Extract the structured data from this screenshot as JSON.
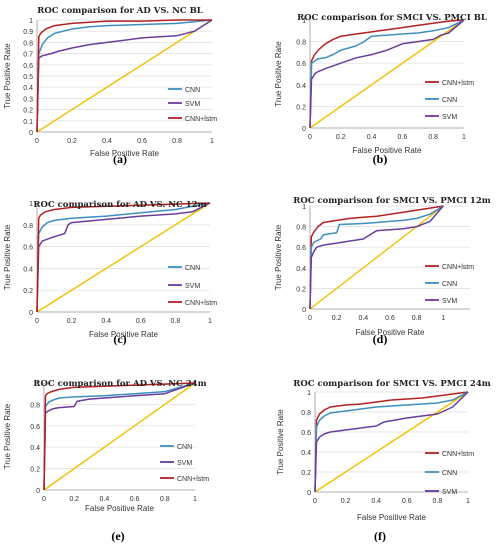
{
  "colors": {
    "CNN": "#3d8fbf",
    "SVM": "#6a3d9a",
    "CNN+lstm": "#b22222",
    "diagonal": "#f0c000"
  },
  "chart_data": [
    {
      "type": "line",
      "title": "ROC comparison for AD VS. NC BL",
      "caption": "(a)",
      "xlabel": "False Positive Rate",
      "ylabel": "True Positive Rate",
      "xlim": [
        0,
        1
      ],
      "ylim": [
        0,
        1
      ],
      "xticks": [
        "0",
        "0.2",
        "0.4",
        "0.6",
        "0.8",
        "1"
      ],
      "yticks": [
        "0",
        "0.1",
        "0.2",
        "0.3",
        "0.4",
        "0.5",
        "0.6",
        "0.7",
        "0.8",
        "0.9",
        "1"
      ],
      "legend_position": "bottom-right",
      "legend": [
        "CNN",
        "SVM",
        "CNN+lstm"
      ],
      "series": [
        {
          "name": "CNN",
          "x": [
            0,
            0.01,
            0.03,
            0.06,
            0.1,
            0.15,
            0.2,
            0.3,
            0.4,
            0.6,
            0.8,
            1
          ],
          "y": [
            0,
            0.7,
            0.78,
            0.84,
            0.88,
            0.9,
            0.92,
            0.94,
            0.95,
            0.96,
            0.97,
            1
          ]
        },
        {
          "name": "SVM",
          "x": [
            0,
            0.01,
            0.03,
            0.08,
            0.12,
            0.2,
            0.3,
            0.4,
            0.5,
            0.6,
            0.7,
            0.8,
            0.9,
            1
          ],
          "y": [
            0,
            0.66,
            0.68,
            0.7,
            0.72,
            0.75,
            0.78,
            0.8,
            0.82,
            0.84,
            0.85,
            0.86,
            0.9,
            1
          ]
        },
        {
          "name": "CNN+lstm",
          "x": [
            0,
            0.01,
            0.02,
            0.05,
            0.1,
            0.2,
            0.3,
            0.4,
            0.6,
            0.8,
            1
          ],
          "y": [
            0,
            0.85,
            0.88,
            0.92,
            0.95,
            0.97,
            0.98,
            0.99,
            0.99,
            1,
            1
          ]
        }
      ]
    },
    {
      "type": "line",
      "title": "ROC comparison for SMCI VS. PMCI BL",
      "caption": "(b)",
      "xlabel": "False Positive Rate",
      "ylabel": "True Positive Rate",
      "xlim": [
        0,
        1
      ],
      "ylim": [
        0,
        1
      ],
      "xticks": [
        "0",
        "0.2",
        "0.4",
        "0.6",
        "0.8",
        "1"
      ],
      "yticks": [
        "0",
        "0.2",
        "0.4",
        "0.6",
        "0.8",
        "1"
      ],
      "legend_position": "right",
      "legend": [
        "CNN+lstm",
        "CNN",
        "SVM"
      ],
      "series": [
        {
          "name": "CNN+lstm",
          "x": [
            0,
            0.01,
            0.03,
            0.06,
            0.1,
            0.15,
            0.2,
            0.3,
            0.4,
            0.5,
            0.6,
            0.7,
            0.8,
            0.9,
            1
          ],
          "y": [
            0,
            0.62,
            0.68,
            0.73,
            0.78,
            0.82,
            0.85,
            0.87,
            0.89,
            0.91,
            0.93,
            0.95,
            0.97,
            0.99,
            1
          ]
        },
        {
          "name": "CNN",
          "x": [
            0,
            0.01,
            0.05,
            0.1,
            0.15,
            0.2,
            0.3,
            0.35,
            0.4,
            0.5,
            0.6,
            0.7,
            0.8,
            0.9,
            1
          ],
          "y": [
            0,
            0.6,
            0.64,
            0.65,
            0.68,
            0.72,
            0.76,
            0.8,
            0.85,
            0.86,
            0.87,
            0.88,
            0.9,
            0.93,
            1
          ]
        },
        {
          "name": "SVM",
          "x": [
            0,
            0.01,
            0.03,
            0.05,
            0.1,
            0.2,
            0.3,
            0.4,
            0.5,
            0.6,
            0.7,
            0.8,
            0.85,
            0.9,
            1
          ],
          "y": [
            0,
            0.45,
            0.5,
            0.52,
            0.55,
            0.6,
            0.65,
            0.68,
            0.72,
            0.78,
            0.8,
            0.82,
            0.86,
            0.88,
            1
          ]
        }
      ]
    },
    {
      "type": "line",
      "title": "ROC comparison for AD VS. NC 12m",
      "caption": "(c)",
      "xlabel": "False Positive Rate",
      "ylabel": "True Positive Rate",
      "xlim": [
        0,
        1
      ],
      "ylim": [
        0,
        1
      ],
      "xticks": [
        "0",
        "0.2",
        "0.4",
        "0.6",
        "0.8",
        "1"
      ],
      "yticks": [
        "0",
        "0.2",
        "0.4",
        "0.6",
        "0.8",
        "1"
      ],
      "legend_position": "bottom-right",
      "legend": [
        "CNN",
        "SVM",
        "CNN+lstm"
      ],
      "series": [
        {
          "name": "CNN",
          "x": [
            0,
            0.01,
            0.03,
            0.06,
            0.1,
            0.2,
            0.4,
            0.6,
            0.8,
            1
          ],
          "y": [
            0,
            0.72,
            0.78,
            0.82,
            0.84,
            0.86,
            0.88,
            0.91,
            0.94,
            1
          ]
        },
        {
          "name": "SVM",
          "x": [
            0,
            0.01,
            0.03,
            0.08,
            0.12,
            0.16,
            0.18,
            0.2,
            0.4,
            0.6,
            0.8,
            0.9,
            1
          ],
          "y": [
            0,
            0.6,
            0.65,
            0.68,
            0.7,
            0.72,
            0.8,
            0.82,
            0.85,
            0.88,
            0.9,
            0.92,
            1
          ]
        },
        {
          "name": "CNN+lstm",
          "x": [
            0,
            0.01,
            0.02,
            0.05,
            0.1,
            0.2,
            0.4,
            0.6,
            0.8,
            1
          ],
          "y": [
            0,
            0.86,
            0.89,
            0.92,
            0.94,
            0.96,
            0.97,
            0.98,
            0.99,
            1
          ]
        }
      ]
    },
    {
      "type": "line",
      "title": "ROC comparison for SMCI VS. PMCI 12m",
      "caption": "(d)",
      "xlabel": "False Positive Rate",
      "ylabel": "True Positive Rate",
      "xlim": [
        0,
        1.2
      ],
      "ylim": [
        0,
        1
      ],
      "xticks": [
        "0",
        "0.2",
        "0.4",
        "0.6",
        "0.8",
        "1"
      ],
      "yticks": [
        "0",
        "0.2",
        "0.4",
        "0.6",
        "0.8",
        "1"
      ],
      "legend_position": "right",
      "legend": [
        "CNN+lstm",
        "CNN",
        "SVM"
      ],
      "series": [
        {
          "name": "CNN+lstm",
          "x": [
            0,
            0.01,
            0.03,
            0.06,
            0.1,
            0.2,
            0.3,
            0.4,
            0.5,
            0.6,
            0.7,
            0.8,
            0.9,
            1
          ],
          "y": [
            0,
            0.7,
            0.75,
            0.8,
            0.84,
            0.86,
            0.88,
            0.89,
            0.9,
            0.92,
            0.94,
            0.96,
            0.98,
            1
          ]
        },
        {
          "name": "CNN",
          "x": [
            0,
            0.01,
            0.03,
            0.08,
            0.1,
            0.2,
            0.22,
            0.4,
            0.5,
            0.6,
            0.7,
            0.8,
            0.9,
            1
          ],
          "y": [
            0,
            0.6,
            0.65,
            0.68,
            0.72,
            0.74,
            0.82,
            0.83,
            0.84,
            0.85,
            0.86,
            0.88,
            0.92,
            1
          ]
        },
        {
          "name": "SVM",
          "x": [
            0,
            0.01,
            0.03,
            0.05,
            0.1,
            0.2,
            0.3,
            0.4,
            0.45,
            0.5,
            0.6,
            0.7,
            0.8,
            0.9,
            1
          ],
          "y": [
            0,
            0.5,
            0.56,
            0.6,
            0.62,
            0.64,
            0.66,
            0.68,
            0.72,
            0.76,
            0.77,
            0.78,
            0.8,
            0.85,
            1
          ]
        }
      ]
    },
    {
      "type": "line",
      "title": "ROC comparison for AD VS. NC 24m",
      "caption": "(e)",
      "xlabel": "False Positive Rate",
      "ylabel": "True Positive Rate",
      "xlim": [
        0,
        1
      ],
      "ylim": [
        0,
        1
      ],
      "xticks": [
        "0",
        "0.2",
        "0.4",
        "0.6",
        "0.8",
        "1"
      ],
      "yticks": [
        "0",
        "0.2",
        "0.4",
        "0.6",
        "0.8",
        "1"
      ],
      "legend_position": "bottom-right",
      "legend": [
        "CNN",
        "SVM",
        "CNN+lstm"
      ],
      "series": [
        {
          "name": "CNN",
          "x": [
            0,
            0.01,
            0.03,
            0.06,
            0.1,
            0.2,
            0.4,
            0.6,
            0.8,
            1
          ],
          "y": [
            0,
            0.78,
            0.82,
            0.84,
            0.86,
            0.87,
            0.88,
            0.9,
            0.92,
            1
          ]
        },
        {
          "name": "SVM",
          "x": [
            0,
            0.01,
            0.03,
            0.06,
            0.1,
            0.2,
            0.22,
            0.3,
            0.4,
            0.6,
            0.8,
            1
          ],
          "y": [
            0,
            0.72,
            0.74,
            0.76,
            0.77,
            0.78,
            0.83,
            0.85,
            0.86,
            0.88,
            0.9,
            1
          ]
        },
        {
          "name": "CNN+lstm",
          "x": [
            0,
            0.01,
            0.02,
            0.05,
            0.1,
            0.2,
            0.4,
            0.6,
            0.8,
            1
          ],
          "y": [
            0,
            0.88,
            0.9,
            0.92,
            0.94,
            0.96,
            0.97,
            0.98,
            0.99,
            1
          ]
        }
      ]
    },
    {
      "type": "line",
      "title": "ROC comparison for SMCI VS. PMCI 24m",
      "caption": "(f)",
      "xlabel": "False Positive Rate",
      "ylabel": "True Positive Rate",
      "xlim": [
        0,
        1
      ],
      "ylim": [
        0,
        1
      ],
      "xticks": [
        "0",
        "0.2",
        "0.4",
        "0.6",
        "0.8",
        "1"
      ],
      "yticks": [
        "0",
        "0.2",
        "0.4",
        "0.6",
        "0.8",
        "1"
      ],
      "legend_position": "right",
      "legend": [
        "CNN+lstm",
        "CNN",
        "SVM"
      ],
      "series": [
        {
          "name": "CNN+lstm",
          "x": [
            0,
            0.01,
            0.03,
            0.06,
            0.1,
            0.2,
            0.3,
            0.4,
            0.5,
            0.6,
            0.7,
            0.8,
            0.9,
            1
          ],
          "y": [
            0,
            0.72,
            0.78,
            0.82,
            0.85,
            0.87,
            0.88,
            0.9,
            0.92,
            0.93,
            0.94,
            0.96,
            0.98,
            1
          ]
        },
        {
          "name": "CNN",
          "x": [
            0,
            0.01,
            0.03,
            0.06,
            0.1,
            0.2,
            0.3,
            0.4,
            0.5,
            0.6,
            0.7,
            0.8,
            0.9,
            1
          ],
          "y": [
            0,
            0.65,
            0.72,
            0.76,
            0.79,
            0.81,
            0.83,
            0.85,
            0.86,
            0.87,
            0.88,
            0.89,
            0.92,
            1
          ]
        },
        {
          "name": "SVM",
          "x": [
            0,
            0.01,
            0.03,
            0.06,
            0.1,
            0.2,
            0.3,
            0.4,
            0.45,
            0.6,
            0.7,
            0.8,
            0.9,
            1
          ],
          "y": [
            0,
            0.5,
            0.55,
            0.58,
            0.6,
            0.62,
            0.64,
            0.66,
            0.7,
            0.74,
            0.76,
            0.78,
            0.85,
            1
          ]
        }
      ]
    }
  ]
}
